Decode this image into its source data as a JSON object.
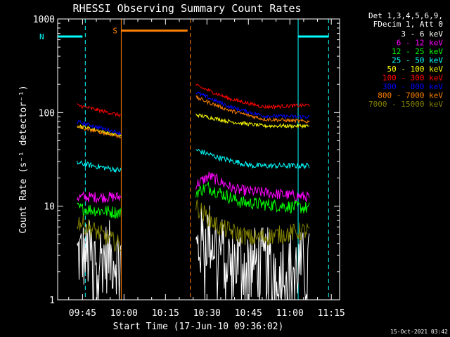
{
  "chart_data": {
    "type": "line",
    "title": "RHESSI Observing Summary Count Rates",
    "xlabel": "Start Time (17-Jun-10 09:36:02)",
    "ylabel": "Count Rate (s⁻¹ detector⁻¹)",
    "yscale": "log",
    "ylim": [
      1,
      1000
    ],
    "xlim": [
      "09:36",
      "11:18"
    ],
    "x_ticks": [
      "09:45",
      "10:00",
      "10:15",
      "10:30",
      "10:45",
      "11:00",
      "11:15"
    ],
    "y_ticks": [
      "1",
      "10",
      "100",
      "1000"
    ],
    "legend_header": [
      "Det 1,3,4,5,6,9,",
      "FDecim 1, Att 0"
    ],
    "legend_position": "right",
    "timestamp": "15-Oct-2021 03:42",
    "flags": [
      {
        "label": "N",
        "color": "#00ffff",
        "bars": [
          [
            "09:36",
            "09:45"
          ],
          [
            "11:03",
            "11:14"
          ]
        ],
        "y": 650,
        "lines": [
          "09:36",
          "09:46",
          "11:03",
          "11:14"
        ]
      },
      {
        "label": "S",
        "color": "#ff8000",
        "bars": [
          [
            "09:59",
            "10:23"
          ]
        ],
        "y": 750,
        "lines": [
          "09:59",
          "10:24"
        ]
      }
    ],
    "segments": [
      [
        "09:43",
        "09:59"
      ],
      [
        "10:26",
        "11:07"
      ]
    ],
    "series": [
      {
        "name": "3 - 6 keV",
        "color": "#ffffff",
        "seg1": [
          [
            0,
            3.0
          ],
          [
            1,
            2.8
          ]
        ],
        "seg2": [
          [
            0,
            3.3
          ],
          [
            0.1,
            5.0
          ],
          [
            0.3,
            2.6
          ],
          [
            1,
            2.2
          ]
        ],
        "noise": 0.4
      },
      {
        "name": "6 - 12 keV",
        "color": "#ff00ff",
        "seg1": [
          [
            0,
            12.5
          ],
          [
            1,
            12.5
          ]
        ],
        "seg2": [
          [
            0,
            17
          ],
          [
            0.12,
            21
          ],
          [
            0.35,
            15
          ],
          [
            1,
            12.5
          ]
        ],
        "noise": 0.06
      },
      {
        "name": "12 - 25 keV",
        "color": "#00ff00",
        "seg1": [
          [
            0,
            9.5
          ],
          [
            1,
            8.5
          ]
        ],
        "seg2": [
          [
            0,
            14
          ],
          [
            0.1,
            16
          ],
          [
            0.4,
            11
          ],
          [
            1,
            9.5
          ]
        ],
        "noise": 0.07
      },
      {
        "name": "25 - 50 keV",
        "color": "#00ffff",
        "seg1": [
          [
            0,
            29
          ],
          [
            1,
            24
          ]
        ],
        "seg2": [
          [
            0,
            40
          ],
          [
            0.2,
            33
          ],
          [
            0.5,
            27
          ],
          [
            1,
            27
          ]
        ],
        "noise": 0.03
      },
      {
        "name": "50 - 100 keV",
        "color": "#ffff00",
        "seg1": [
          [
            0,
            73
          ],
          [
            1,
            56
          ]
        ],
        "seg2": [
          [
            0,
            95
          ],
          [
            0.3,
            80
          ],
          [
            0.6,
            72
          ],
          [
            1,
            72
          ]
        ],
        "noise": 0.02
      },
      {
        "name": "100 - 300 keV",
        "color": "#ff0000",
        "seg1": [
          [
            0,
            120
          ],
          [
            1,
            93
          ]
        ],
        "seg2": [
          [
            0,
            195
          ],
          [
            0.3,
            140
          ],
          [
            0.6,
            115
          ],
          [
            1,
            120
          ]
        ],
        "noise": 0.02
      },
      {
        "name": "300 - 800 keV",
        "color": "#0000ff",
        "seg1": [
          [
            0,
            80
          ],
          [
            1,
            60
          ]
        ],
        "seg2": [
          [
            0,
            165
          ],
          [
            0.3,
            115
          ],
          [
            0.6,
            92
          ],
          [
            1,
            90
          ]
        ],
        "noise": 0.02
      },
      {
        "name": "800 - 7000 keV",
        "color": "#ff8000",
        "seg1": [
          [
            0,
            70
          ],
          [
            1,
            55
          ]
        ],
        "seg2": [
          [
            0,
            145
          ],
          [
            0.3,
            105
          ],
          [
            0.6,
            85
          ],
          [
            1,
            80
          ]
        ],
        "noise": 0.02
      },
      {
        "name": "7000 - 15000 keV",
        "color": "#808000",
        "seg1": [
          [
            0,
            7
          ],
          [
            1,
            3.8
          ]
        ],
        "seg2": [
          [
            0,
            10
          ],
          [
            0.2,
            6
          ],
          [
            0.5,
            4.5
          ],
          [
            1,
            5.5
          ]
        ],
        "noise": 0.1
      }
    ]
  }
}
